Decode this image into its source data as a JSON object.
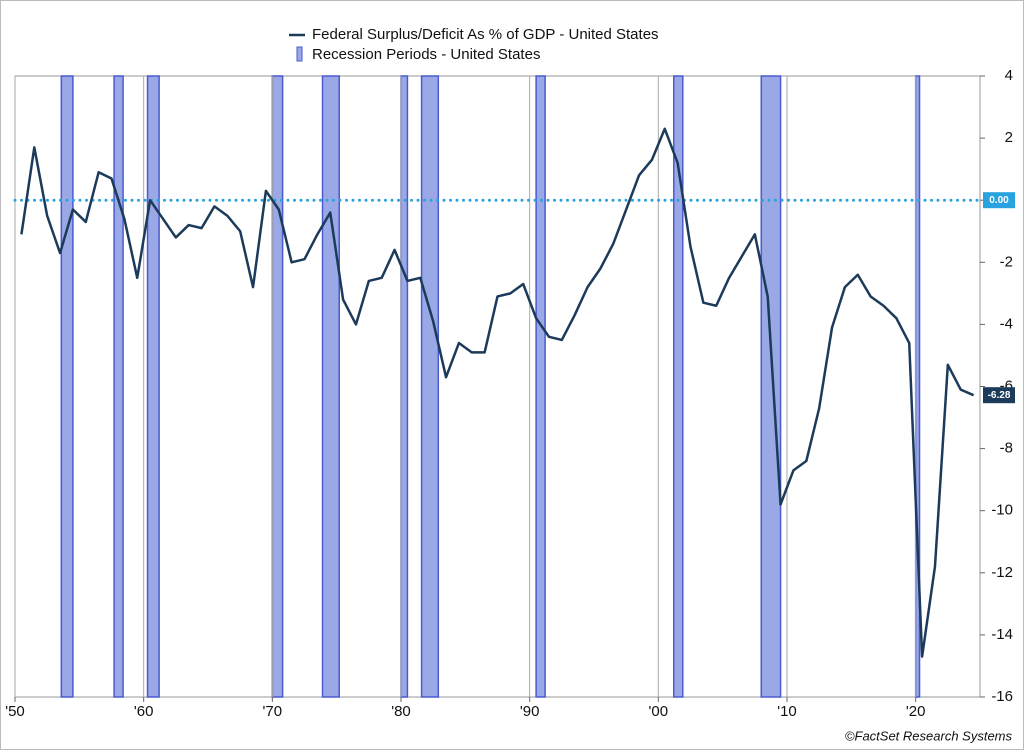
{
  "chart_data": {
    "type": "line",
    "x": [
      1950.5,
      1951.5,
      1952.5,
      1953.5,
      1954.5,
      1955.5,
      1956.5,
      1957.5,
      1958.5,
      1959.5,
      1960.5,
      1961.5,
      1962.5,
      1963.5,
      1964.5,
      1965.5,
      1966.5,
      1967.5,
      1968.5,
      1969.5,
      1970.5,
      1971.5,
      1972.5,
      1973.5,
      1974.5,
      1975.5,
      1976.5,
      1977.5,
      1978.5,
      1979.5,
      1980.5,
      1981.5,
      1982.5,
      1983.5,
      1984.5,
      1985.5,
      1986.5,
      1987.5,
      1988.5,
      1989.5,
      1990.5,
      1991.5,
      1992.5,
      1993.5,
      1994.5,
      1995.5,
      1996.5,
      1997.5,
      1998.5,
      1999.5,
      2000.5,
      2001.5,
      2002.5,
      2003.5,
      2004.5,
      2005.5,
      2006.5,
      2007.5,
      2008.5,
      2009.5,
      2010.5,
      2011.5,
      2012.5,
      2013.5,
      2014.5,
      2015.5,
      2016.5,
      2017.5,
      2018.5,
      2019.5,
      2020.5,
      2021.5,
      2022.5,
      2023.5,
      2024.5
    ],
    "series": [
      {
        "name": "Federal Surplus/Deficit As % of GDP - United States",
        "color": "#1c3a5a",
        "values": [
          -1.1,
          1.7,
          -0.5,
          -1.7,
          -0.3,
          -0.7,
          0.9,
          0.7,
          -0.6,
          -2.5,
          0.0,
          -0.6,
          -1.2,
          -0.8,
          -0.9,
          -0.2,
          -0.5,
          -1.0,
          -2.8,
          0.3,
          -0.3,
          -2.0,
          -1.9,
          -1.1,
          -0.4,
          -3.2,
          -4.0,
          -2.6,
          -2.5,
          -1.6,
          -2.6,
          -2.5,
          -3.9,
          -5.7,
          -4.6,
          -4.9,
          -4.9,
          -3.1,
          -3.0,
          -2.7,
          -3.8,
          -4.4,
          -4.5,
          -3.7,
          -2.8,
          -2.2,
          -1.4,
          -0.3,
          0.8,
          1.3,
          2.3,
          1.2,
          -1.5,
          -3.3,
          -3.4,
          -2.5,
          -1.8,
          -1.1,
          -3.1,
          -9.8,
          -8.7,
          -8.4,
          -6.7,
          -4.1,
          -2.8,
          -2.4,
          -3.1,
          -3.4,
          -3.8,
          -4.6,
          -14.7,
          -11.8,
          -5.3,
          -6.1,
          -6.28
        ],
        "end_label": "-6.28"
      }
    ],
    "recessions": {
      "name": "Recession Periods - United States",
      "color": "#9aa8e6",
      "periods": [
        [
          1953.6,
          1954.5
        ],
        [
          1957.7,
          1958.4
        ],
        [
          1960.3,
          1961.2
        ],
        [
          1970.0,
          1970.8
        ],
        [
          1973.9,
          1975.2
        ],
        [
          1980.0,
          1980.5
        ],
        [
          1981.6,
          1982.9
        ],
        [
          1990.5,
          1991.2
        ],
        [
          2001.2,
          2001.9
        ],
        [
          2008.0,
          2009.5
        ],
        [
          2020.0,
          2020.3
        ]
      ]
    },
    "reference_line": {
      "value": 0,
      "label": "0.00",
      "color": "#29a3e0"
    },
    "xlim": [
      1950,
      2025
    ],
    "xticks": [
      {
        "value": 1950,
        "label": "'50"
      },
      {
        "value": 1960,
        "label": "'60"
      },
      {
        "value": 1970,
        "label": "'70"
      },
      {
        "value": 1980,
        "label": "'80"
      },
      {
        "value": 1990,
        "label": "'90"
      },
      {
        "value": 2000,
        "label": "'00"
      },
      {
        "value": 2010,
        "label": "'10"
      },
      {
        "value": 2020,
        "label": "'20"
      }
    ],
    "ylim": [
      -16,
      4
    ],
    "yticks": [
      4,
      2,
      0,
      -2,
      -4,
      -6,
      -8,
      -10,
      -12,
      -14,
      -16
    ],
    "grid": true,
    "credit": "©FactSet Research Systems"
  }
}
